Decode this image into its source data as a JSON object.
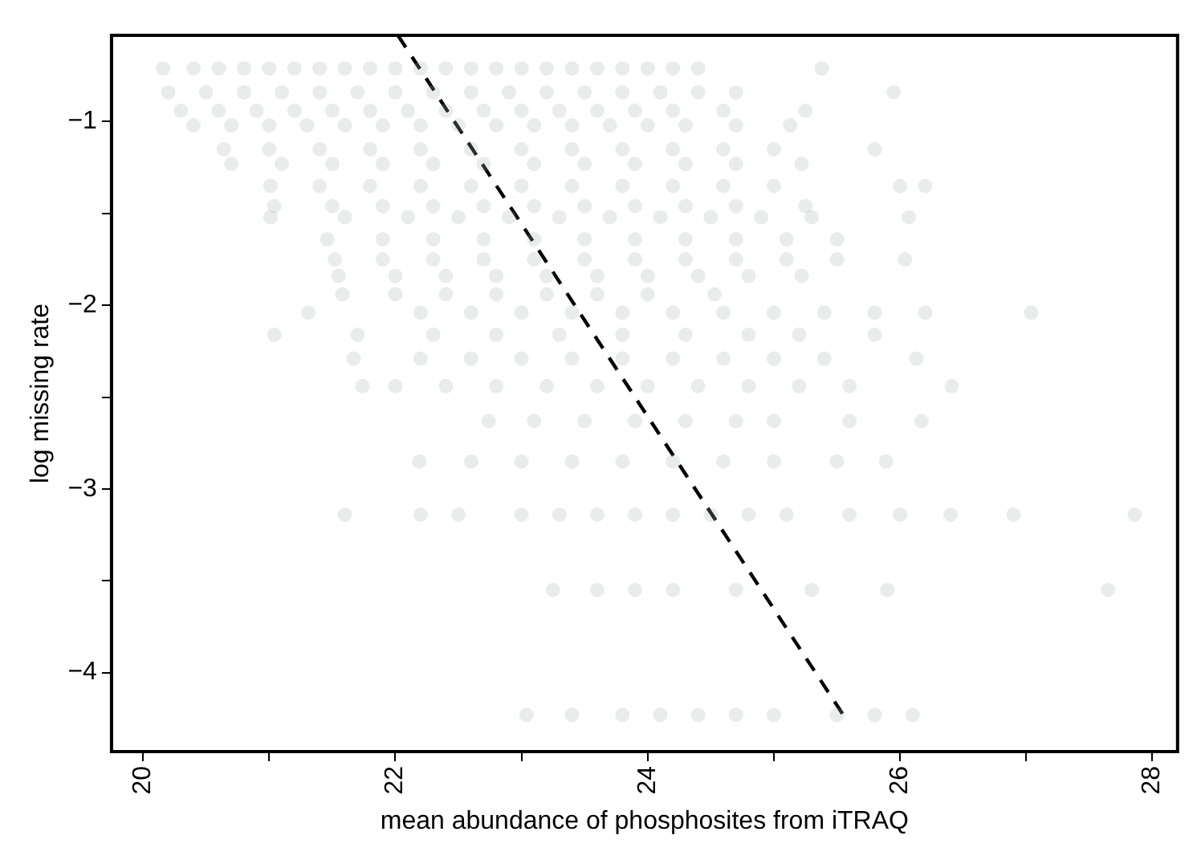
{
  "chart_data": {
    "type": "scatter",
    "xlabel": "mean abundance of phosphosites from iTRAQ",
    "ylabel": "log missing rate",
    "xlim": [
      19.75,
      28.2
    ],
    "ylim": [
      -4.43,
      -0.53
    ],
    "xticks": [
      20,
      {
        "value": 21,
        "label": null
      },
      22,
      {
        "value": 23,
        "label": null
      },
      24,
      {
        "value": 25,
        "label": null
      },
      26,
      {
        "value": 27,
        "label": null
      },
      28
    ],
    "yticks": [
      {
        "value": -1,
        "label": "−1"
      },
      {
        "value": -1.5,
        "label": null
      },
      {
        "value": -2,
        "label": "−2"
      },
      {
        "value": -2.5,
        "label": null
      },
      {
        "value": -3,
        "label": "−3"
      },
      {
        "value": -3.5,
        "label": null
      },
      {
        "value": -4,
        "label": "−4"
      }
    ],
    "grid": false,
    "legend": false,
    "marker": "circle",
    "series": [
      {
        "type": "scatter",
        "color": "#a8b4b4",
        "x": [
          20.16,
          20.4,
          20.6,
          20.8,
          21.0,
          21.2,
          21.4,
          21.6,
          21.8,
          22.0,
          22.2,
          22.4,
          22.6,
          22.8,
          23.0,
          23.2,
          23.4,
          23.6,
          23.8,
          24.0,
          24.2,
          24.4,
          25.38,
          20.2,
          20.5,
          20.8,
          21.1,
          21.4,
          21.7,
          22.0,
          22.3,
          22.6,
          22.9,
          23.2,
          23.5,
          23.8,
          24.1,
          24.4,
          24.7,
          25.95,
          20.3,
          20.6,
          20.9,
          21.2,
          21.5,
          21.8,
          22.1,
          22.4,
          22.7,
          23.0,
          23.3,
          23.6,
          23.9,
          24.2,
          24.6,
          25.25,
          20.4,
          20.7,
          21.0,
          21.3,
          21.6,
          21.9,
          22.2,
          22.5,
          22.8,
          23.1,
          23.4,
          23.7,
          24.0,
          24.3,
          24.7,
          25.13,
          20.64,
          21.0,
          21.4,
          21.8,
          22.2,
          22.6,
          23.0,
          23.4,
          23.8,
          24.2,
          24.6,
          25.0,
          25.8,
          20.7,
          21.1,
          21.5,
          21.9,
          22.3,
          22.7,
          23.1,
          23.5,
          23.9,
          24.3,
          24.7,
          25.22,
          21.01,
          21.4,
          21.8,
          22.2,
          22.6,
          23.0,
          23.4,
          23.8,
          24.2,
          24.6,
          25.0,
          26.0,
          26.2,
          21.04,
          21.5,
          21.9,
          22.3,
          22.7,
          23.1,
          23.5,
          23.9,
          24.3,
          24.7,
          25.25,
          21.01,
          21.6,
          22.1,
          22.5,
          22.9,
          23.3,
          23.7,
          24.1,
          24.5,
          24.9,
          25.3,
          26.07,
          21.46,
          21.9,
          22.3,
          22.7,
          23.1,
          23.5,
          23.9,
          24.3,
          24.7,
          25.1,
          25.5,
          21.52,
          21.9,
          22.3,
          22.7,
          23.1,
          23.5,
          23.9,
          24.3,
          24.7,
          25.1,
          25.5,
          26.04,
          21.55,
          22.0,
          22.4,
          22.8,
          23.2,
          23.6,
          24.0,
          24.4,
          24.8,
          25.22,
          21.58,
          22.0,
          22.4,
          22.8,
          23.2,
          23.6,
          24.0,
          24.53,
          21.31,
          22.2,
          22.6,
          23.0,
          23.4,
          23.8,
          24.2,
          24.6,
          25.0,
          25.4,
          25.8,
          26.2,
          27.04,
          21.04,
          21.7,
          22.3,
          22.8,
          23.3,
          23.8,
          24.3,
          24.8,
          25.2,
          25.8,
          21.67,
          22.2,
          22.6,
          23.0,
          23.4,
          23.8,
          24.2,
          24.6,
          25.0,
          25.4,
          26.13,
          21.74,
          22.0,
          22.4,
          22.8,
          23.2,
          23.6,
          24.0,
          24.4,
          24.8,
          25.2,
          25.6,
          26.41,
          22.74,
          23.1,
          23.5,
          23.9,
          24.3,
          24.7,
          25.0,
          25.6,
          26.17,
          22.19,
          22.6,
          23.0,
          23.4,
          23.8,
          24.2,
          24.6,
          25.0,
          25.5,
          25.89,
          21.6,
          22.2,
          22.5,
          23.0,
          23.3,
          23.6,
          23.9,
          24.2,
          24.5,
          24.8,
          25.1,
          25.6,
          26.0,
          26.4,
          26.9,
          27.86,
          23.25,
          23.6,
          23.9,
          24.2,
          24.7,
          25.3,
          25.9,
          27.65,
          23.04,
          23.4,
          23.8,
          24.1,
          24.4,
          24.7,
          25.0,
          25.5,
          25.8,
          26.1
        ],
        "values": [
          -0.71,
          -0.71,
          -0.71,
          -0.71,
          -0.71,
          -0.71,
          -0.71,
          -0.71,
          -0.71,
          -0.71,
          -0.71,
          -0.71,
          -0.71,
          -0.71,
          -0.71,
          -0.71,
          -0.71,
          -0.71,
          -0.71,
          -0.71,
          -0.71,
          -0.71,
          -0.71,
          -0.84,
          -0.84,
          -0.84,
          -0.84,
          -0.84,
          -0.84,
          -0.84,
          -0.84,
          -0.84,
          -0.84,
          -0.84,
          -0.84,
          -0.84,
          -0.84,
          -0.84,
          -0.84,
          -0.84,
          -0.94,
          -0.94,
          -0.94,
          -0.94,
          -0.94,
          -0.94,
          -0.94,
          -0.94,
          -0.94,
          -0.94,
          -0.94,
          -0.94,
          -0.94,
          -0.94,
          -0.94,
          -0.94,
          -1.02,
          -1.02,
          -1.02,
          -1.02,
          -1.02,
          -1.02,
          -1.02,
          -1.02,
          -1.02,
          -1.02,
          -1.02,
          -1.02,
          -1.02,
          -1.02,
          -1.02,
          -1.02,
          -1.15,
          -1.15,
          -1.15,
          -1.15,
          -1.15,
          -1.15,
          -1.15,
          -1.15,
          -1.15,
          -1.15,
          -1.15,
          -1.15,
          -1.15,
          -1.23,
          -1.23,
          -1.23,
          -1.23,
          -1.23,
          -1.23,
          -1.23,
          -1.23,
          -1.23,
          -1.23,
          -1.23,
          -1.23,
          -1.35,
          -1.35,
          -1.35,
          -1.35,
          -1.35,
          -1.35,
          -1.35,
          -1.35,
          -1.35,
          -1.35,
          -1.35,
          -1.35,
          -1.35,
          -1.46,
          -1.46,
          -1.46,
          -1.46,
          -1.46,
          -1.46,
          -1.46,
          -1.46,
          -1.46,
          -1.46,
          -1.46,
          -1.52,
          -1.52,
          -1.52,
          -1.52,
          -1.52,
          -1.52,
          -1.52,
          -1.52,
          -1.52,
          -1.52,
          -1.52,
          -1.52,
          -1.64,
          -1.64,
          -1.64,
          -1.64,
          -1.64,
          -1.64,
          -1.64,
          -1.64,
          -1.64,
          -1.64,
          -1.64,
          -1.75,
          -1.75,
          -1.75,
          -1.75,
          -1.75,
          -1.75,
          -1.75,
          -1.75,
          -1.75,
          -1.75,
          -1.75,
          -1.75,
          -1.84,
          -1.84,
          -1.84,
          -1.84,
          -1.84,
          -1.84,
          -1.84,
          -1.84,
          -1.84,
          -1.84,
          -1.94,
          -1.94,
          -1.94,
          -1.94,
          -1.94,
          -1.94,
          -1.94,
          -1.94,
          -2.04,
          -2.04,
          -2.04,
          -2.04,
          -2.04,
          -2.04,
          -2.04,
          -2.04,
          -2.04,
          -2.04,
          -2.04,
          -2.04,
          -2.04,
          -2.16,
          -2.16,
          -2.16,
          -2.16,
          -2.16,
          -2.16,
          -2.16,
          -2.16,
          -2.16,
          -2.16,
          -2.29,
          -2.29,
          -2.29,
          -2.29,
          -2.29,
          -2.29,
          -2.29,
          -2.29,
          -2.29,
          -2.29,
          -2.29,
          -2.44,
          -2.44,
          -2.44,
          -2.44,
          -2.44,
          -2.44,
          -2.44,
          -2.44,
          -2.44,
          -2.44,
          -2.44,
          -2.44,
          -2.63,
          -2.63,
          -2.63,
          -2.63,
          -2.63,
          -2.63,
          -2.63,
          -2.63,
          -2.63,
          -2.85,
          -2.85,
          -2.85,
          -2.85,
          -2.85,
          -2.85,
          -2.85,
          -2.85,
          -2.85,
          -2.85,
          -3.14,
          -3.14,
          -3.14,
          -3.14,
          -3.14,
          -3.14,
          -3.14,
          -3.14,
          -3.14,
          -3.14,
          -3.14,
          -3.14,
          -3.14,
          -3.14,
          -3.14,
          -3.14,
          -3.55,
          -3.55,
          -3.55,
          -3.55,
          -3.55,
          -3.55,
          -3.55,
          -3.55,
          -4.23,
          -4.23,
          -4.23,
          -4.23,
          -4.23,
          -4.23,
          -4.23,
          -4.23,
          -4.23,
          -4.23
        ]
      },
      {
        "type": "line",
        "color": "#000000",
        "line_style": "dashed",
        "marker": "none",
        "x": [
          22.02,
          25.55
        ],
        "values": [
          -0.53,
          -4.23
        ]
      }
    ]
  }
}
